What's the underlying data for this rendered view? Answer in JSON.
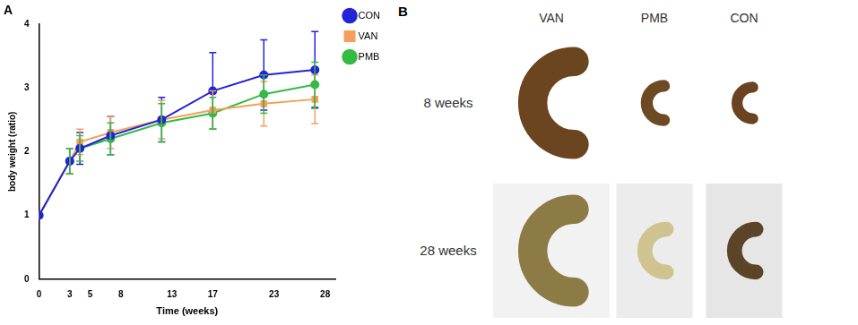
{
  "chart_data": {
    "type": "line",
    "title": "A",
    "x_label": "Time (weeks)",
    "y_label": "body weight (ratio)",
    "x": [
      0,
      3,
      4,
      7,
      12,
      17,
      22,
      27
    ],
    "xlim": [
      0,
      29
    ],
    "xticks": [
      0,
      3,
      5,
      8,
      13,
      17,
      23,
      28
    ],
    "ylim": [
      0,
      4
    ],
    "yticks": [
      0,
      1,
      2,
      3,
      4
    ],
    "grid": false,
    "legend": "right",
    "series": [
      {
        "name": "CON",
        "color": "#2323d8",
        "marker": "circle",
        "values": [
          1,
          1.85,
          2.05,
          2.25,
          2.5,
          2.95,
          3.2,
          3.28
        ],
        "errors": [
          0,
          0.2,
          0.25,
          0.3,
          0.35,
          0.6,
          0.55,
          0.6
        ]
      },
      {
        "name": "VAN",
        "color": "#f5a05a",
        "marker": "square",
        "values": [
          1,
          1.85,
          2.15,
          2.3,
          2.5,
          2.65,
          2.75,
          2.82
        ],
        "errors": [
          0,
          0.2,
          0.2,
          0.25,
          0.3,
          0.3,
          0.35,
          0.38
        ]
      },
      {
        "name": "PMB",
        "color": "#33bb44",
        "marker": "circle",
        "values": [
          1,
          1.85,
          2.05,
          2.2,
          2.45,
          2.6,
          2.9,
          3.05
        ],
        "errors": [
          0,
          0.2,
          0.2,
          0.25,
          0.3,
          0.25,
          0.3,
          0.35
        ]
      }
    ]
  },
  "panel_b": {
    "label": "B",
    "columns": [
      "VAN",
      "PMB",
      "CON"
    ],
    "rows": [
      "8 weeks",
      "28 weeks"
    ]
  }
}
